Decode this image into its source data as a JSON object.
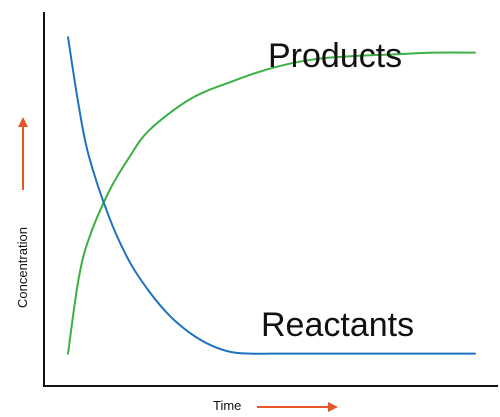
{
  "chart_data": {
    "type": "line",
    "title": "",
    "xlabel": "Time",
    "ylabel": "Concentration",
    "xlim": [
      0,
      10
    ],
    "ylim": [
      0,
      10
    ],
    "grid": false,
    "legend": "none",
    "ticks": false,
    "series": [
      {
        "name": "Products",
        "color": "#3cb043",
        "x": [
          0,
          0.25,
          0.5,
          1,
          1.5,
          2,
          3,
          4,
          5,
          6,
          7,
          8,
          9,
          10
        ],
        "values": [
          0.3,
          2.4,
          3.6,
          5.0,
          6.0,
          6.8,
          7.7,
          8.2,
          8.6,
          8.85,
          8.95,
          9.0,
          9.05,
          9.05
        ]
      },
      {
        "name": "Reactants",
        "color": "#1f72c0",
        "x": [
          0,
          0.25,
          0.5,
          1,
          1.5,
          2,
          2.5,
          3,
          3.5,
          4,
          4.5,
          5,
          6,
          7,
          8,
          9,
          10
        ],
        "values": [
          9.5,
          7.6,
          6.1,
          4.3,
          3.0,
          2.1,
          1.4,
          0.9,
          0.55,
          0.35,
          0.3,
          0.3,
          0.3,
          0.3,
          0.3,
          0.3,
          0.3
        ]
      }
    ],
    "colors": {
      "axis": "#111111",
      "arrow": "#e8552a"
    }
  }
}
